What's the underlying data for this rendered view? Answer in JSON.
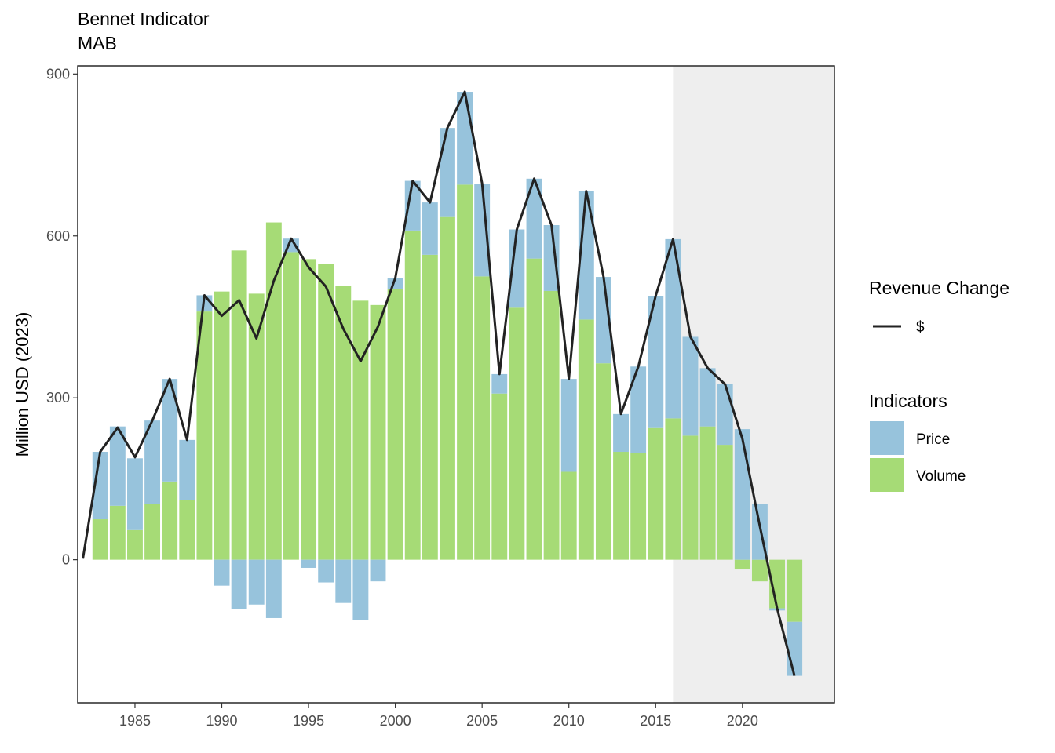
{
  "title": "Bennet Indicator",
  "subtitle": "MAB",
  "ylabel": "Million USD (2023)",
  "legend": {
    "line_title": "Revenue Change",
    "line_label": "$",
    "fill_title": "Indicators",
    "fill_items": [
      {
        "label": "Price",
        "color": "#97c3dc"
      },
      {
        "label": "Volume",
        "color": "#a6db76"
      }
    ]
  },
  "chart_data": {
    "type": "bar",
    "x": [
      1982,
      1983,
      1984,
      1985,
      1986,
      1987,
      1988,
      1989,
      1990,
      1991,
      1992,
      1993,
      1994,
      1995,
      1996,
      1997,
      1998,
      1999,
      2000,
      2001,
      2002,
      2003,
      2004,
      2005,
      2006,
      2007,
      2008,
      2009,
      2010,
      2011,
      2012,
      2013,
      2014,
      2015,
      2016,
      2017,
      2018,
      2019,
      2020,
      2021,
      2022,
      2023
    ],
    "series": [
      {
        "name": "Volume",
        "color": "#a6db76",
        "values": [
          null,
          75,
          100,
          55,
          103,
          145,
          110,
          460,
          497,
          573,
          493,
          625,
          570,
          557,
          548,
          508,
          480,
          472,
          502,
          610,
          565,
          635,
          695,
          525,
          308,
          467,
          558,
          498,
          163,
          445,
          364,
          200,
          198,
          244,
          262,
          230,
          247,
          213,
          -18,
          -40,
          -90,
          -115
        ]
      },
      {
        "name": "Price",
        "color": "#97c3dc",
        "values": [
          null,
          125,
          147,
          133,
          155,
          190,
          112,
          30,
          -48,
          -92,
          -83,
          -108,
          25,
          -15,
          -42,
          -80,
          -112,
          -40,
          20,
          92,
          97,
          165,
          172,
          172,
          36,
          145,
          148,
          122,
          172,
          238,
          160,
          70,
          160,
          245,
          332,
          183,
          108,
          112,
          242,
          103,
          -4,
          -100
        ]
      },
      {
        "name": "$",
        "color": "#222222",
        "values": [
          2,
          200,
          245,
          190,
          258,
          335,
          222,
          490,
          452,
          481,
          410,
          517,
          595,
          542,
          506,
          428,
          368,
          432,
          522,
          702,
          662,
          800,
          867,
          697,
          344,
          612,
          706,
          620,
          335,
          683,
          524,
          270,
          358,
          489,
          594,
          413,
          355,
          325,
          224,
          63,
          -90,
          -215
        ]
      }
    ],
    "xlim": [
      1981.7,
      2025.3
    ],
    "ylim": [
      -265,
      915
    ],
    "xticks": [
      1985,
      1990,
      1995,
      2000,
      2005,
      2010,
      2015,
      2020
    ],
    "yticks": [
      0,
      300,
      600,
      900
    ],
    "shaded_region": {
      "x_start": 2016,
      "x_end": 2025.3,
      "color": "#eeeeee"
    },
    "grid": false,
    "legend_position": "right"
  }
}
